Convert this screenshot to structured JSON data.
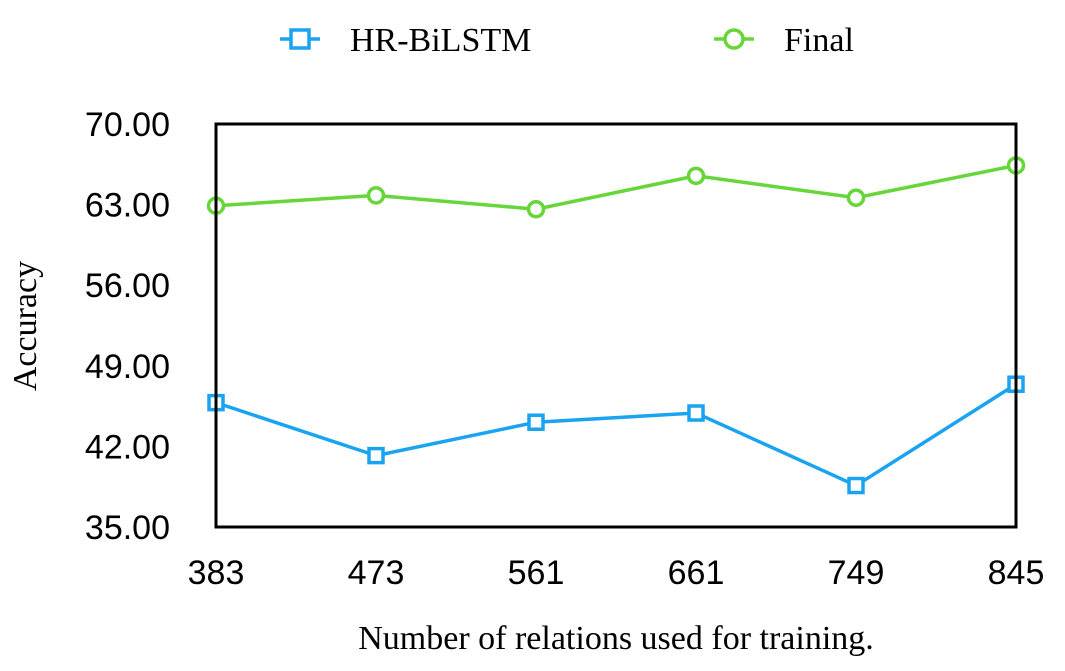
{
  "chart_data": {
    "type": "line",
    "title": "",
    "xlabel": "Number of relations used for training.",
    "ylabel": "Accuracy",
    "categories": [
      "383",
      "473",
      "561",
      "661",
      "749",
      "845"
    ],
    "ylim": [
      35,
      70
    ],
    "yticks": [
      "35.00",
      "42.00",
      "49.00",
      "56.00",
      "63.00",
      "70.00"
    ],
    "ytick_values": [
      35,
      42,
      49,
      56,
      63,
      70
    ],
    "grid": false,
    "legend_position": "top",
    "series": [
      {
        "name": "HR-BiLSTM",
        "marker": "square",
        "color": "#1aa3f0",
        "values": [
          45.8,
          41.2,
          44.1,
          44.9,
          38.6,
          47.4
        ]
      },
      {
        "name": "Final",
        "marker": "circle",
        "color": "#66d63a",
        "values": [
          62.9,
          63.8,
          62.6,
          65.5,
          63.6,
          66.4
        ]
      }
    ]
  }
}
